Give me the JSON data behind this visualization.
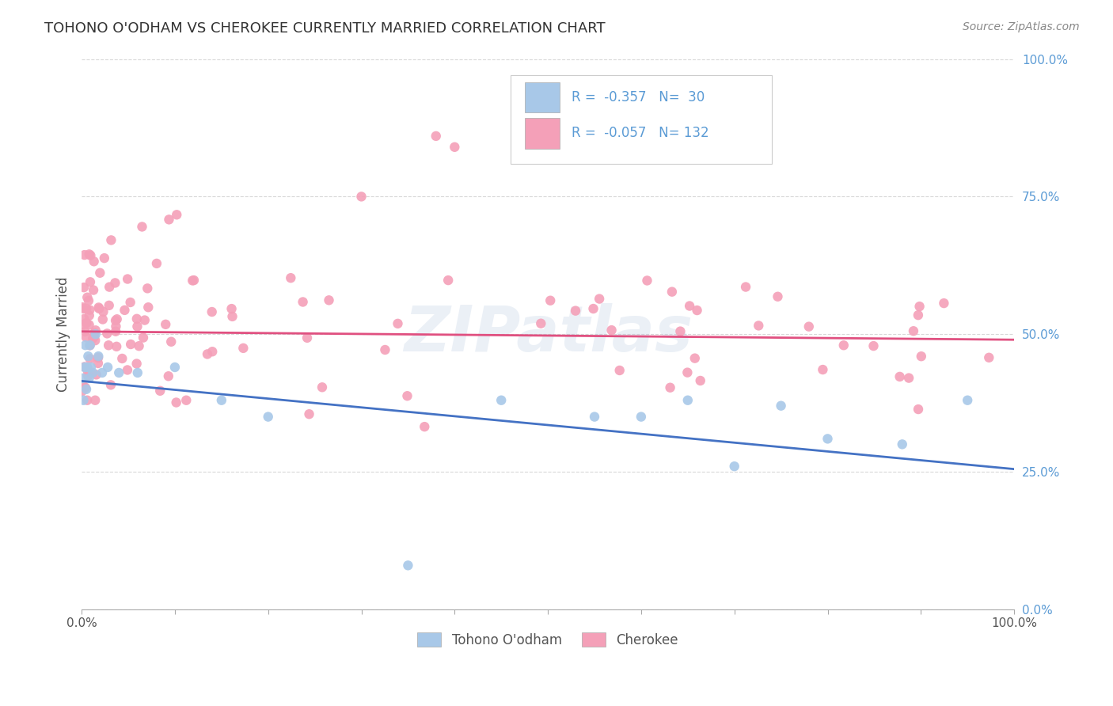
{
  "title": "TOHONO O'ODHAM VS CHEROKEE CURRENTLY MARRIED CORRELATION CHART",
  "source_text": "Source: ZipAtlas.com",
  "ylabel": "Currently Married",
  "legend_bottom": [
    "Tohono O'odham",
    "Cherokee"
  ],
  "r_tohono": -0.357,
  "n_tohono": 30,
  "r_cherokee": -0.057,
  "n_cherokee": 132,
  "color_tohono": "#a8c8e8",
  "color_cherokee": "#f4a0b8",
  "color_tohono_line": "#4472c4",
  "color_cherokee_line": "#e05080",
  "marker_size": 80,
  "xmin": 0.0,
  "xmax": 1.0,
  "ymin": 0.0,
  "ymax": 1.0,
  "xticks": [
    0.0,
    0.1,
    0.2,
    0.3,
    0.4,
    0.5,
    0.6,
    0.7,
    0.8,
    0.9,
    1.0
  ],
  "yticks": [
    0.0,
    0.25,
    0.5,
    0.75,
    1.0
  ],
  "xtick_labels": [
    "0.0%",
    "",
    "",
    "",
    "",
    "",
    "",
    "",
    "",
    "",
    "100.0%"
  ],
  "ytick_labels_right": [
    "0.0%",
    "25.0%",
    "50.0%",
    "75.0%",
    "100.0%"
  ],
  "background_color": "#ffffff",
  "grid_color": "#d8d8d8",
  "tick_color": "#5b9bd5",
  "watermark": "ZIPatlas",
  "tohono_line_y0": 0.415,
  "tohono_line_y1": 0.255,
  "cherokee_line_y0": 0.505,
  "cherokee_line_y1": 0.49
}
